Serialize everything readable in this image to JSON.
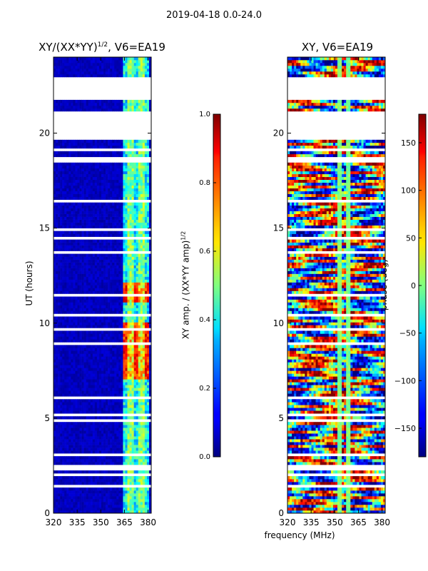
{
  "figure": {
    "suptitle": "2019-04-18 0.0-24.0",
    "xlabel": "frequency (MHz)",
    "ylabel": "UT (hours)"
  },
  "panels": {
    "left_title": "XY/(XX*YY)^(1/2), V6=EA19",
    "right_title": "XY, V6=EA19"
  },
  "colorbars": {
    "amp_label": "XY amp. / (XX*YY amp)^(1/2)",
    "phase_label": "phase (deg)"
  },
  "chart_data": [
    {
      "type": "heatmap",
      "title": "XY/(XX*YY)^(1/2), V6=EA19",
      "xlabel": "",
      "ylabel": "UT (hours)",
      "xlim": [
        320,
        382
      ],
      "ylim": [
        0,
        24
      ],
      "xticks": [
        320,
        335,
        350,
        365,
        380
      ],
      "yticks": [
        0,
        5,
        10,
        15,
        20
      ],
      "colormap": "jet",
      "clim": [
        0.0,
        1.0
      ],
      "colorbar_ticks": [
        "0.0",
        "0.2",
        "0.4",
        "0.6",
        "0.8",
        "1.0"
      ],
      "colorbar_label": "XY amp. / (XX*YY amp)^(1/2)",
      "gaps_hours": [
        [
          19.6,
          21.0
        ],
        [
          21.9,
          22.9
        ]
      ],
      "high_amplitude_band_mhz": [
        363,
        380
      ],
      "high_amplitude_hours": [
        [
          7.0,
          10.0
        ],
        [
          11.0,
          12.0
        ]
      ]
    },
    {
      "type": "heatmap",
      "title": "XY, V6=EA19",
      "xlabel": "frequency (MHz)",
      "ylabel": "",
      "xlim": [
        320,
        382
      ],
      "ylim": [
        0,
        24
      ],
      "xticks": [
        320,
        335,
        350,
        365,
        380
      ],
      "yticks": [
        0,
        5,
        10,
        15,
        20
      ],
      "colormap": "jet",
      "clim": [
        -180,
        180
      ],
      "colorbar_ticks": [
        "150",
        "100",
        "50",
        "0",
        "−50",
        "−100",
        "−150"
      ],
      "colorbar_label": "phase (deg)",
      "gaps_hours": [
        [
          19.6,
          21.0
        ],
        [
          21.9,
          22.9
        ]
      ]
    }
  ]
}
